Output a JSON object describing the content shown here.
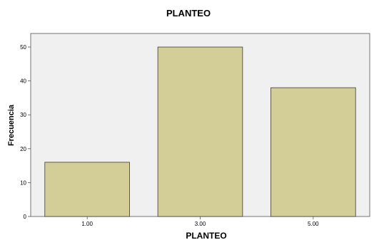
{
  "chart_data": {
    "type": "bar",
    "title": "PLANTEO",
    "xlabel": "PLANTEO",
    "ylabel": "Frecuencia",
    "categories": [
      "1.00",
      "3.00",
      "5.00"
    ],
    "values": [
      16,
      50,
      38
    ],
    "ylim": [
      0,
      54
    ],
    "yticks": [
      "0",
      "10",
      "20",
      "30",
      "40",
      "50"
    ],
    "grid": false,
    "colors": {
      "bar_fill": "#d3cd98",
      "bar_stroke": "#3b3b2e",
      "plot_bg": "#f0f0f0",
      "frame": "#555555"
    }
  }
}
